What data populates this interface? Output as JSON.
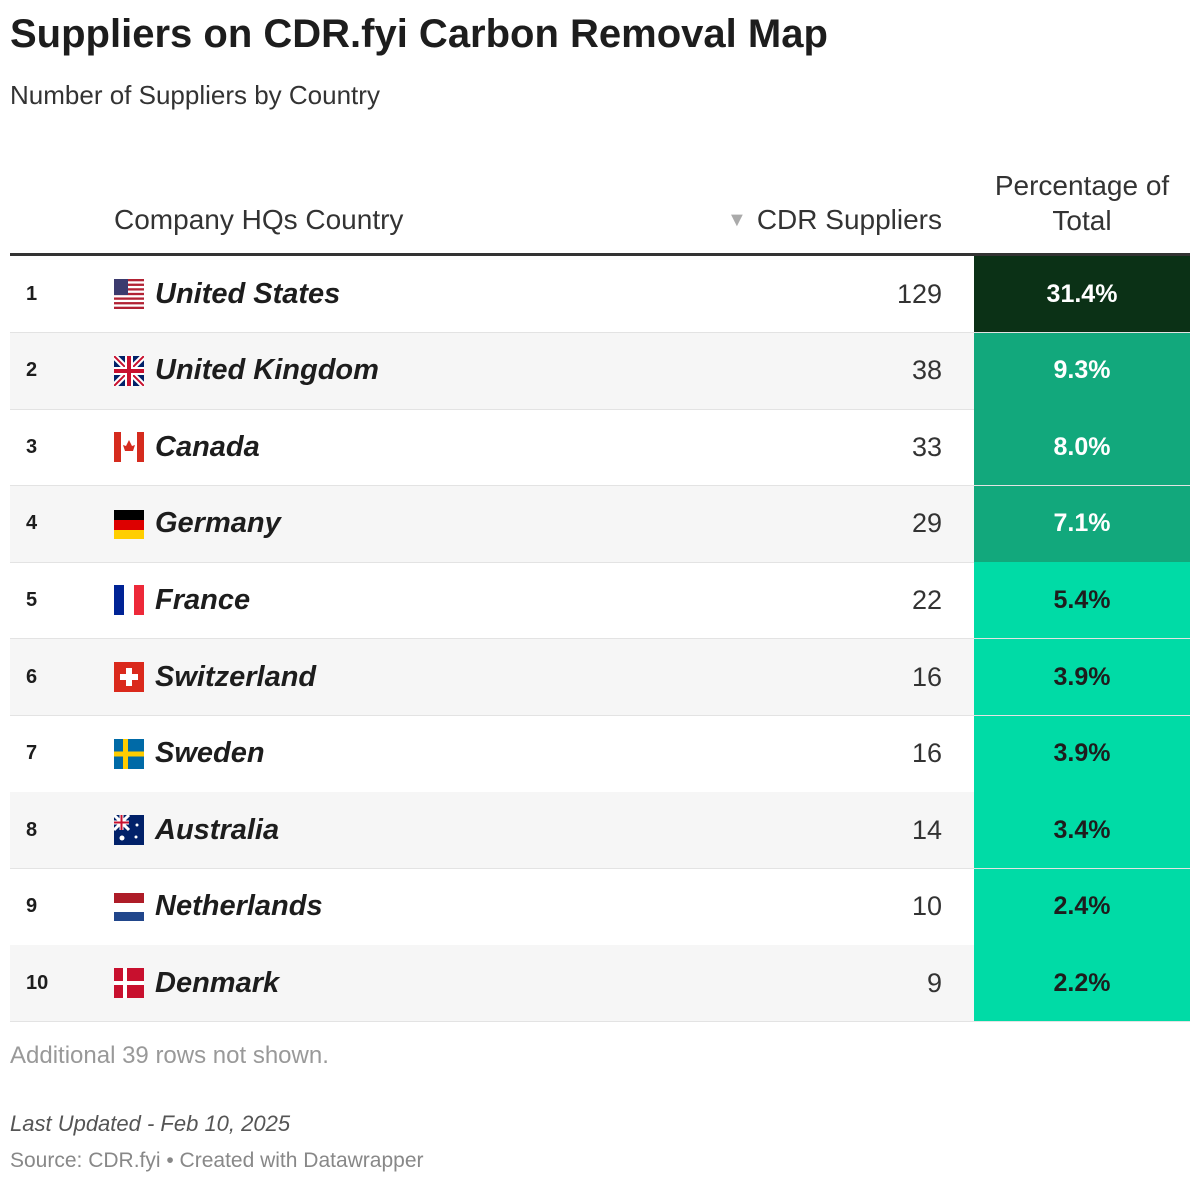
{
  "header": {
    "title": "Suppliers on CDR.fyi Carbon Removal Map",
    "subtitle": "Number of Suppliers by Country"
  },
  "table": {
    "columns": [
      "Company HQs Country",
      "CDR Suppliers",
      "Percentage of Total"
    ],
    "rows": [
      {
        "rank": "1",
        "country": "United States",
        "suppliers": "129",
        "share": "31.4%",
        "color": "#0b3116"
      },
      {
        "rank": "2",
        "country": "United Kingdom",
        "suppliers": "38",
        "share": "9.3%",
        "color": "#12a87c"
      },
      {
        "rank": "3",
        "country": "Canada",
        "suppliers": "33",
        "share": "8.0%",
        "color": "#12a87c"
      },
      {
        "rank": "4",
        "country": "Germany",
        "suppliers": "29",
        "share": "7.1%",
        "color": "#12a87c"
      },
      {
        "rank": "5",
        "country": "France",
        "suppliers": "22",
        "share": "5.4%",
        "color": "#00dba6"
      },
      {
        "rank": "6",
        "country": "Switzerland",
        "suppliers": "16",
        "share": "3.9%",
        "color": "#00dba6"
      },
      {
        "rank": "7",
        "country": "Sweden",
        "suppliers": "16",
        "share": "3.9%",
        "color": "#00dba6"
      },
      {
        "rank": "8",
        "country": "Australia",
        "suppliers": "14",
        "share": "3.4%",
        "color": "#00dba6"
      },
      {
        "rank": "9",
        "country": "Netherlands",
        "suppliers": "10",
        "share": "2.4%",
        "color": "#00dba6"
      },
      {
        "rank": "10",
        "country": "Denmark",
        "suppliers": "9",
        "share": "2.2%",
        "color": "#00dba6"
      }
    ]
  },
  "footer": {
    "note": "Additional 39 rows not shown.",
    "updated": "Last Updated - Feb 10, 2025",
    "source": "Source: CDR.fyi • Created with Datawrapper"
  }
}
